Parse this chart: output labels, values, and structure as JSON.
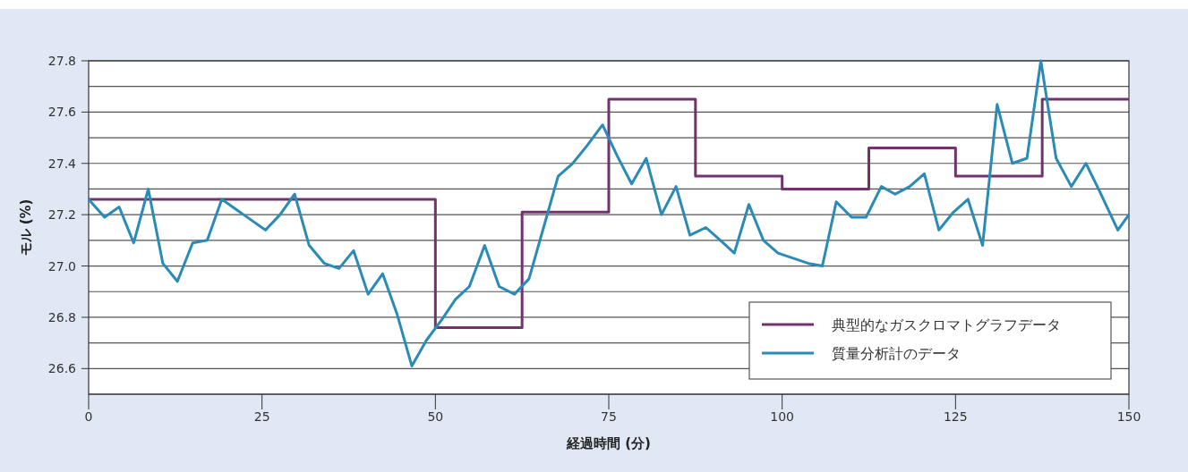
{
  "chart_data": {
    "type": "line",
    "xlabel": "経過時間 (分)",
    "ylabel": "モル (%)",
    "xlim": [
      0,
      150
    ],
    "xticks": [
      0,
      25,
      50,
      75,
      100,
      125,
      150
    ],
    "ylim": [
      26.5,
      27.8
    ],
    "yticks": [
      {
        "value": 26.5,
        "label": null
      },
      {
        "value": 26.6,
        "label": "26.6"
      },
      {
        "value": 26.7,
        "label": null
      },
      {
        "value": 26.8,
        "label": "26.8"
      },
      {
        "value": 26.9,
        "label": null
      },
      {
        "value": 27.0,
        "label": "27.0"
      },
      {
        "value": 27.1,
        "label": null
      },
      {
        "value": 27.2,
        "label": "27.2"
      },
      {
        "value": 27.3,
        "label": null
      },
      {
        "value": 27.4,
        "label": "27.4"
      },
      {
        "value": 27.5,
        "label": null
      },
      {
        "value": 27.6,
        "label": "27.6"
      },
      {
        "value": 27.7,
        "label": null
      },
      {
        "value": 27.8,
        "label": "27.8"
      }
    ],
    "grid": "y",
    "legend": "bottom right",
    "series": [
      {
        "name": "典型的なガスクロマトグラフデータ",
        "type": "step",
        "color": "#70336e",
        "x": [
          0,
          50,
          62.5,
          75,
          87.5,
          100,
          112.5,
          125,
          137.5,
          150
        ],
        "values": [
          27.26,
          26.76,
          27.21,
          27.65,
          27.35,
          27.3,
          27.46,
          27.35,
          27.65,
          27.65
        ]
      },
      {
        "name": "質量分析計のデータ",
        "color": "#2a8ab8",
        "x": [
          0,
          2.3,
          4.4,
          6.5,
          8.6,
          10.7,
          12.8,
          15.0,
          17.1,
          19.2,
          21.3,
          23.4,
          25.5,
          27.6,
          29.7,
          31.8,
          34.0,
          36.1,
          38.2,
          40.3,
          42.4,
          44.5,
          46.6,
          48.7,
          50.9,
          52.9,
          54.9,
          57.1,
          59.2,
          61.4,
          63.5,
          65.6,
          67.7,
          69.8,
          71.9,
          74.1,
          76.2,
          78.3,
          80.4,
          82.6,
          84.7,
          86.7,
          89.0,
          91.1,
          93.1,
          95.2,
          97.3,
          99.4,
          101.6,
          103.8,
          105.8,
          107.8,
          110.0,
          112.1,
          114.3,
          116.3,
          118.4,
          120.5,
          122.6,
          124.7,
          126.8,
          128.9,
          131.0,
          133.2,
          135.3,
          137.3,
          139.5,
          141.7,
          143.8,
          145.8,
          148.4,
          150
        ],
        "values": [
          27.26,
          27.19,
          27.23,
          27.09,
          27.3,
          27.01,
          26.94,
          27.09,
          27.1,
          27.26,
          27.22,
          27.18,
          27.14,
          27.2,
          27.28,
          27.08,
          27.01,
          26.99,
          27.06,
          26.89,
          26.97,
          26.81,
          26.61,
          26.71,
          26.79,
          26.87,
          26.92,
          27.08,
          26.92,
          26.89,
          26.95,
          27.15,
          27.35,
          27.4,
          27.47,
          27.55,
          27.43,
          27.32,
          27.42,
          27.2,
          27.31,
          27.12,
          27.15,
          27.1,
          27.05,
          27.24,
          27.1,
          27.05,
          27.03,
          27.01,
          27.0,
          27.25,
          27.19,
          27.19,
          27.31,
          27.28,
          27.31,
          27.36,
          27.14,
          27.21,
          27.26,
          27.08,
          27.63,
          27.4,
          27.42,
          27.8,
          27.42,
          27.31,
          27.4,
          27.29,
          27.14,
          27.2
        ]
      }
    ]
  }
}
